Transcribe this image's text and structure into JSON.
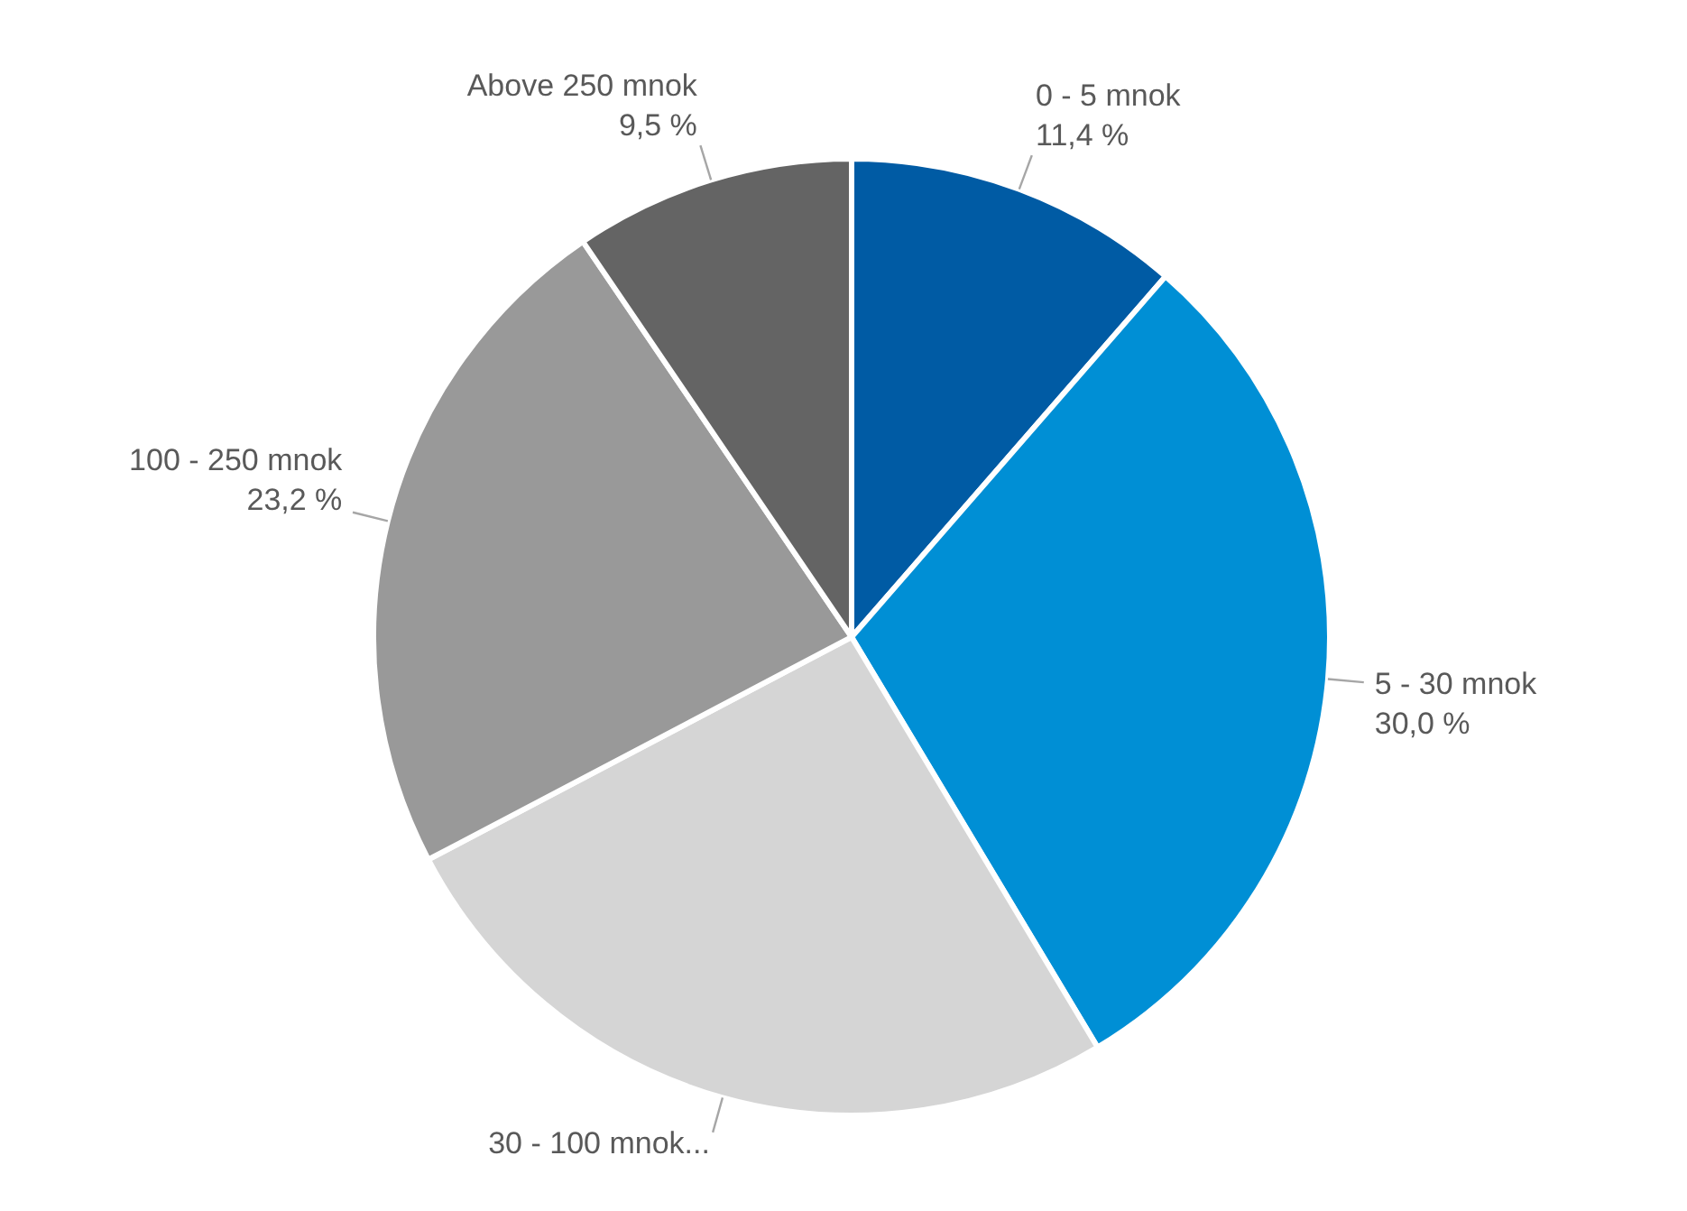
{
  "chart_data": {
    "type": "pie",
    "categories": [
      "0 - 5 mnok",
      "5 - 30 mnok",
      "30 - 100 mnok...",
      "100 - 250 mnok",
      "Above 250 mnok"
    ],
    "values": [
      11.4,
      30.0,
      25.9,
      23.2,
      9.5
    ],
    "value_labels": [
      "11,4 %",
      "30,0 %",
      null,
      "23,2 %",
      "9,5 %"
    ],
    "colors": [
      "#005ba4",
      "#008fd5",
      "#d5d5d5",
      "#999999",
      "#646464"
    ],
    "legend": false
  }
}
